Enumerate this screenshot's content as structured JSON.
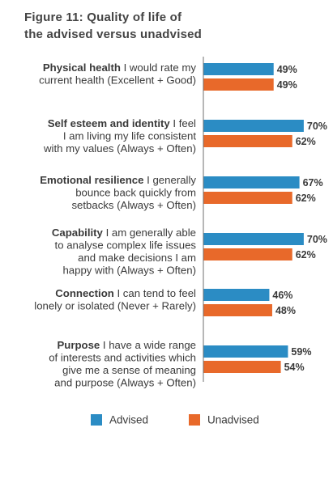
{
  "figure": {
    "title_line1": "Figure 11: Quality of life of",
    "title_line2": "the advised versus unadvised"
  },
  "chart_data": {
    "type": "bar",
    "orientation": "horizontal",
    "title": "Figure 11: Quality of life of the advised versus unadvised",
    "xlim": [
      0,
      100
    ],
    "value_suffix": "%",
    "grid": false,
    "legend_position": "bottom",
    "categories": [
      {
        "label_bold": "Physical health",
        "label_lines": [
          "Physical health  I would rate my",
          "current health (Excellent + Good)"
        ]
      },
      {
        "label_bold": "Self esteem and identity",
        "label_lines": [
          "Self esteem and identity  I feel",
          "I am living my life consistent",
          "with my values (Always + Often)"
        ]
      },
      {
        "label_bold": "Emotional resilience",
        "label_lines": [
          "Emotional resilience  I generally",
          "bounce back quickly from",
          "setbacks (Always + Often)"
        ]
      },
      {
        "label_bold": "Capability",
        "label_lines": [
          "Capability  I am generally able",
          "to analyse complex life issues",
          "and make decisions I am",
          "happy with (Always + Often)"
        ]
      },
      {
        "label_bold": "Connection",
        "label_lines": [
          "Connection  I can tend to feel",
          "lonely or isolated (Never + Rarely)"
        ]
      },
      {
        "label_bold": "Purpose",
        "label_lines": [
          "Purpose  I have a wide range",
          "of interests and activities which",
          "give me a sense of meaning",
          "and purpose (Always + Often)"
        ]
      }
    ],
    "series": [
      {
        "name": "Advised",
        "color": "#2b8cc4",
        "values": [
          49,
          70,
          67,
          70,
          46,
          59
        ]
      },
      {
        "name": "Unadvised",
        "color": "#e8692a",
        "values": [
          49,
          62,
          62,
          62,
          48,
          54
        ]
      }
    ]
  }
}
